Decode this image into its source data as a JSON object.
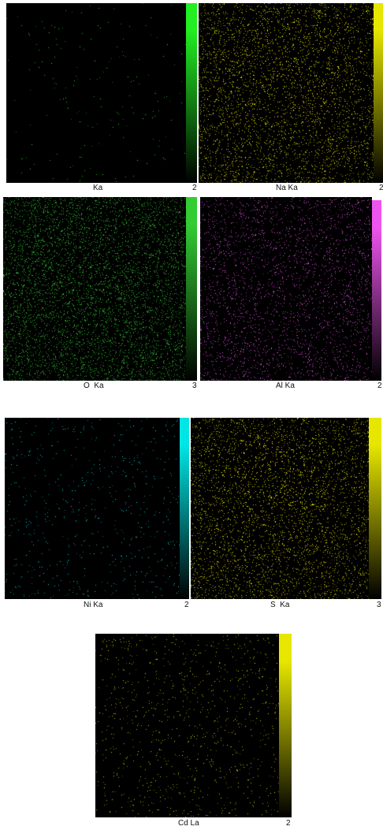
{
  "panels": [
    {
      "label": "Ka",
      "max": "2",
      "color": "#22ee22",
      "density": 0.01,
      "glow": 0.0
    },
    {
      "label": "Na Ka",
      "max": "2",
      "color": "#e6e600",
      "density": 0.22,
      "glow": 0.35
    },
    {
      "label": "O  Ka",
      "max": "3",
      "color": "#33cc33",
      "density": 0.3,
      "glow": 0.25
    },
    {
      "label": "Al Ka",
      "max": "2",
      "color": "#ee55ee",
      "density": 0.16,
      "glow": 0.1
    },
    {
      "label": "Ni Ka",
      "max": "2",
      "color": "#00e5e5",
      "density": 0.035,
      "glow": 0.0
    },
    {
      "label": "S  Ka",
      "max": "3",
      "color": "#e6e600",
      "density": 0.22,
      "glow": 0.3
    },
    {
      "label": "Cd La",
      "max": "2",
      "color": "#e6e600",
      "density": 0.05,
      "glow": 0.0
    }
  ]
}
